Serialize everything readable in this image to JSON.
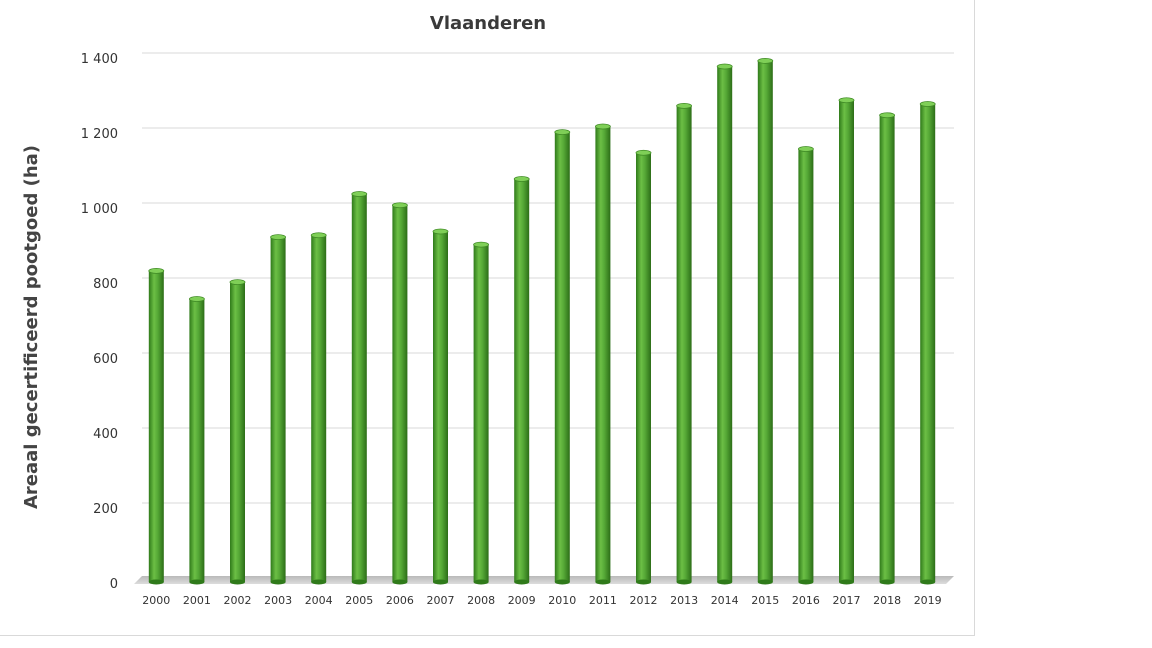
{
  "chart_data": {
    "type": "bar",
    "title": "Vlaanderen",
    "xlabel": "",
    "ylabel": "Areaal gecertificeerd pootgoed (ha)",
    "categories": [
      "2000",
      "2001",
      "2002",
      "2003",
      "2004",
      "2005",
      "2006",
      "2007",
      "2008",
      "2009",
      "2010",
      "2011",
      "2012",
      "2013",
      "2014",
      "2015",
      "2016",
      "2017",
      "2018",
      "2019"
    ],
    "values": [
      835,
      760,
      805,
      925,
      930,
      1040,
      1010,
      940,
      905,
      1080,
      1205,
      1220,
      1150,
      1275,
      1380,
      1395,
      1160,
      1290,
      1250,
      1280
    ],
    "ylim": [
      0,
      1400
    ],
    "yticks": [
      0,
      200,
      400,
      600,
      800,
      1000,
      1200,
      1400
    ],
    "ytick_labels": [
      "0",
      "200",
      "400",
      "600",
      "800",
      "1 000",
      "1 200",
      "1 400"
    ],
    "grid": true,
    "legend": "none",
    "bar_color": "#4a9a2e"
  }
}
